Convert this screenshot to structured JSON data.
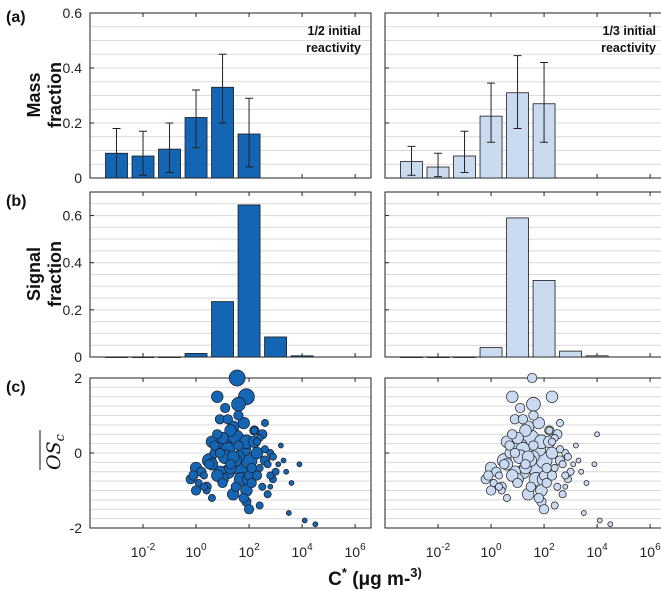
{
  "figure": {
    "x_axis_label": "C* (μg m-3)",
    "x_tick_labels": [
      "10-2",
      "100",
      "102",
      "104",
      "106"
    ],
    "x_tick_exponents": [
      -2,
      0,
      2,
      4,
      6
    ],
    "x_log_range": [
      -4,
      6.6
    ],
    "panel_labels": [
      "(a)",
      "(b)",
      "(c)"
    ],
    "annotations": [
      "1/2 initial\nreactivity",
      "1/3 initial\nreactivity"
    ],
    "colors": {
      "dark": "#1565b5",
      "light": "#c9daf1",
      "edge": "#1a1a1a",
      "grid": "#d9d9d9"
    }
  },
  "chart_data": [
    {
      "type": "bar",
      "row": "a",
      "column": "1/2 initial reactivity",
      "ylabel": "Mass fraction",
      "ylim": [
        0,
        0.6
      ],
      "yticks": [
        0,
        0.2,
        0.4,
        0.6
      ],
      "grid": true,
      "x_log10": [
        -3,
        -2,
        -1,
        0,
        1,
        2
      ],
      "values": [
        0.09,
        0.08,
        0.105,
        0.22,
        0.33,
        0.16
      ],
      "error_low": [
        0.0,
        0.01,
        0.02,
        0.11,
        0.2,
        0.04
      ],
      "error_high": [
        0.18,
        0.17,
        0.2,
        0.32,
        0.45,
        0.29
      ]
    },
    {
      "type": "bar",
      "row": "a",
      "column": "1/3 initial reactivity",
      "ylabel": "Mass fraction",
      "ylim": [
        0,
        0.6
      ],
      "yticks": [
        0,
        0.2,
        0.4,
        0.6
      ],
      "grid": true,
      "x_log10": [
        -3,
        -2,
        -1,
        0,
        1,
        2
      ],
      "values": [
        0.06,
        0.04,
        0.08,
        0.225,
        0.31,
        0.27
      ],
      "error_low": [
        0.01,
        0.005,
        0.02,
        0.13,
        0.18,
        0.13
      ],
      "error_high": [
        0.115,
        0.09,
        0.17,
        0.345,
        0.445,
        0.42
      ]
    },
    {
      "type": "bar",
      "row": "b",
      "column": "1/2 initial reactivity",
      "ylabel": "Signal fraction",
      "ylim": [
        0,
        0.7
      ],
      "yticks": [
        0,
        0.2,
        0.4,
        0.6
      ],
      "grid": true,
      "x_log10": [
        -3,
        -2,
        -1,
        0,
        1,
        2,
        3,
        4
      ],
      "values": [
        0,
        0,
        0,
        0.015,
        0.235,
        0.645,
        0.085,
        0.005
      ]
    },
    {
      "type": "bar",
      "row": "b",
      "column": "1/3 initial reactivity",
      "ylabel": "Signal fraction",
      "ylim": [
        0,
        0.7
      ],
      "yticks": [
        0,
        0.2,
        0.4,
        0.6
      ],
      "grid": true,
      "x_log10": [
        -3,
        -2,
        -1,
        0,
        1,
        2,
        3,
        4
      ],
      "values": [
        0,
        0,
        0,
        0.04,
        0.59,
        0.325,
        0.025,
        0.005
      ]
    },
    {
      "type": "scatter",
      "row": "c",
      "column": "1/2 initial reactivity",
      "ylabel": "OSc",
      "ylim": [
        -2,
        2
      ],
      "yticks": [
        -2,
        0,
        2
      ],
      "grid": true,
      "x_log10": [
        -0.2,
        0.0,
        0.3,
        0.5,
        0.7,
        0.9,
        1.1,
        1.3,
        1.5,
        1.6,
        1.8,
        2.0,
        2.2,
        2.4,
        2.6,
        2.8,
        3.0,
        0.1,
        0.4,
        0.6,
        0.8,
        1.0,
        1.2,
        1.4,
        1.7,
        1.9,
        2.1,
        2.3,
        2.5,
        2.7,
        2.9,
        3.2,
        0.2,
        0.6,
        0.9,
        1.1,
        1.3,
        1.5,
        1.8,
        2.0,
        2.3,
        2.6,
        -0.1,
        0.4,
        0.7,
        1.0,
        1.2,
        1.6,
        1.9,
        2.2,
        2.5,
        2.8,
        3.3,
        3.6,
        0.5,
        0.8,
        1.1,
        1.4,
        1.7,
        2.1,
        2.4,
        2.7,
        0.3,
        0.9,
        1.3,
        1.6,
        2.0,
        2.4,
        2.9,
        3.4,
        3.9,
        0.0,
        0.6,
        1.0,
        1.5,
        1.9,
        2.3,
        2.8,
        0.8,
        1.2,
        1.6,
        2.0,
        2.6,
        3.1,
        1.4,
        1.8,
        2.2,
        3.5,
        4.1,
        4.5
      ],
      "y": [
        -0.7,
        -0.4,
        -0.6,
        -0.2,
        0.0,
        -0.5,
        0.2,
        -0.3,
        0.4,
        -0.1,
        0.1,
        -0.6,
        0.3,
        -0.4,
        -0.2,
        0.0,
        -0.5,
        -0.8,
        -0.9,
        -0.3,
        0.5,
        -0.7,
        0.1,
        0.7,
        -0.4,
        0.3,
        -0.8,
        0.0,
        0.5,
        -0.3,
        -0.7,
        0.2,
        -0.5,
        0.3,
        0.9,
        -0.1,
        0.6,
        -0.9,
        0.8,
        -0.2,
        -0.6,
        0.1,
        -0.6,
        -1.0,
        0.2,
        0.4,
        -0.5,
        1.0,
        -1.0,
        0.6,
        -0.9,
        -0.6,
        -0.2,
        -0.8,
        -0.3,
        -0.6,
        1.2,
        -1.1,
        -0.7,
        -0.4,
        0.4,
        -1.1,
        -0.9,
        0.0,
        -0.4,
        0.2,
        -0.7,
        -1.4,
        -0.1,
        -0.5,
        -0.3,
        -1.0,
        -1.2,
        -0.8,
        -0.2,
        -1.3,
        0.3,
        -0.9,
        1.5,
        0.9,
        1.3,
        -1.5,
        0.8,
        -0.3,
        -0.1,
        -1.2,
        0.6,
        -1.6,
        -1.8,
        -1.9
      ],
      "size": [
        3,
        4,
        2,
        5,
        3,
        4,
        5,
        3,
        6,
        4,
        5,
        3,
        4,
        2,
        3,
        2,
        2,
        2,
        3,
        4,
        3,
        4,
        5,
        4,
        6,
        5,
        3,
        4,
        3,
        2,
        2,
        1,
        3,
        4,
        3,
        5,
        4,
        3,
        4,
        6,
        3,
        2,
        3,
        2,
        3,
        4,
        5,
        3,
        4,
        3,
        2,
        2,
        1,
        1,
        3,
        4,
        3,
        4,
        5,
        3,
        2,
        2,
        2,
        3,
        4,
        3,
        5,
        2,
        2,
        1,
        1,
        3,
        2,
        3,
        4,
        3,
        2,
        1,
        4,
        3,
        5,
        3,
        2,
        1,
        4,
        3,
        2,
        1,
        1,
        1
      ],
      "special_points": [
        {
          "x_log10": 1.55,
          "y": 2.0,
          "size": 6
        },
        {
          "x_log10": 1.9,
          "y": 1.5,
          "size": 6
        }
      ]
    },
    {
      "type": "scatter",
      "row": "c",
      "column": "1/3 initial reactivity",
      "ylabel": "OSc",
      "ylim": [
        -2,
        2
      ],
      "yticks": [
        -2,
        0,
        2
      ],
      "grid": true,
      "x_log10": [
        -0.2,
        0.0,
        0.3,
        0.5,
        0.7,
        0.9,
        1.1,
        1.3,
        1.5,
        1.6,
        1.8,
        2.0,
        2.2,
        2.4,
        2.6,
        2.8,
        3.0,
        0.1,
        0.4,
        0.6,
        0.8,
        1.0,
        1.2,
        1.4,
        1.7,
        1.9,
        2.1,
        2.3,
        2.5,
        2.7,
        2.9,
        3.2,
        0.2,
        0.6,
        0.9,
        1.1,
        1.3,
        1.5,
        1.8,
        2.0,
        2.3,
        2.6,
        -0.1,
        0.4,
        0.7,
        1.0,
        1.2,
        1.6,
        1.9,
        2.2,
        2.5,
        2.8,
        3.3,
        3.6,
        0.5,
        0.8,
        1.1,
        1.4,
        1.7,
        2.1,
        2.4,
        2.7,
        0.3,
        0.9,
        1.3,
        1.6,
        2.0,
        2.4,
        2.9,
        3.4,
        3.9,
        0.0,
        0.6,
        1.0,
        1.5,
        1.9,
        2.3,
        2.8,
        0.8,
        1.2,
        1.6,
        2.0,
        2.6,
        3.1,
        1.4,
        1.8,
        2.2,
        3.5,
        4.1,
        4.5
      ],
      "y": [
        -0.7,
        -0.4,
        -0.6,
        -0.2,
        0.0,
        -0.5,
        0.2,
        -0.3,
        0.4,
        -0.1,
        0.1,
        -0.6,
        0.3,
        -0.4,
        -0.2,
        0.0,
        -0.5,
        -0.8,
        -0.9,
        -0.3,
        0.5,
        -0.7,
        0.1,
        0.7,
        -0.4,
        0.3,
        -0.8,
        0.0,
        0.5,
        -0.3,
        -0.7,
        0.2,
        -0.5,
        0.3,
        0.9,
        -0.1,
        0.6,
        -0.9,
        0.8,
        -0.2,
        -0.6,
        0.1,
        -0.6,
        -1.0,
        0.2,
        0.4,
        -0.5,
        1.0,
        -1.0,
        0.6,
        -0.9,
        -0.6,
        -0.2,
        -0.8,
        -0.3,
        -0.6,
        1.2,
        -1.1,
        -0.7,
        -0.4,
        0.4,
        -1.1,
        -0.9,
        0.0,
        -0.4,
        0.2,
        -0.7,
        -1.4,
        -0.1,
        -0.5,
        -0.3,
        -1.0,
        -1.2,
        -0.8,
        -0.2,
        -1.3,
        0.3,
        -0.9,
        1.5,
        0.9,
        1.3,
        -1.5,
        0.8,
        -0.3,
        -0.1,
        -1.2,
        0.6,
        -1.6,
        -1.8,
        -1.9
      ],
      "size": [
        3,
        4,
        2,
        5,
        3,
        4,
        5,
        3,
        6,
        4,
        5,
        3,
        4,
        2,
        3,
        2,
        2,
        2,
        3,
        4,
        3,
        4,
        5,
        4,
        6,
        5,
        3,
        4,
        3,
        2,
        2,
        1,
        3,
        4,
        3,
        5,
        4,
        3,
        4,
        6,
        3,
        2,
        3,
        2,
        3,
        4,
        5,
        3,
        4,
        3,
        2,
        2,
        1,
        1,
        3,
        4,
        3,
        4,
        5,
        3,
        2,
        2,
        2,
        3,
        4,
        3,
        5,
        2,
        2,
        1,
        1,
        3,
        2,
        3,
        4,
        3,
        2,
        1,
        4,
        3,
        5,
        3,
        2,
        1,
        4,
        3,
        2,
        1,
        1,
        1
      ],
      "special_points": [
        {
          "x_log10": 1.55,
          "y": 2.0,
          "size": 3
        },
        {
          "x_log10": 2.3,
          "y": 1.5,
          "size": 4
        },
        {
          "x_log10": 4.0,
          "y": 0.5,
          "size": 1
        }
      ]
    }
  ]
}
